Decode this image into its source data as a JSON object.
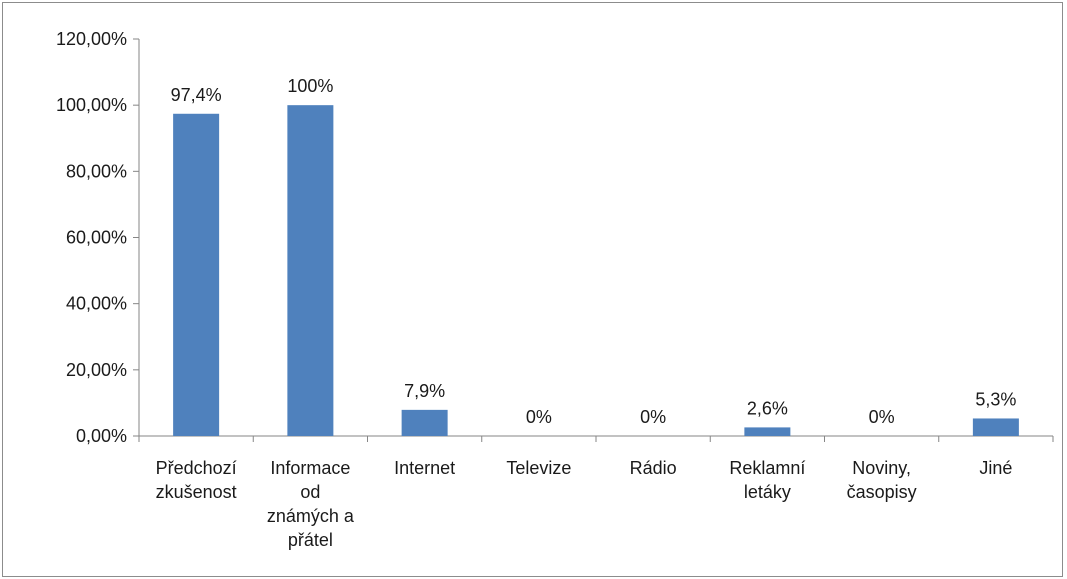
{
  "chart_data": {
    "type": "bar",
    "title": "",
    "xlabel": "",
    "ylabel": "",
    "ylim": [
      0,
      120
    ],
    "y_ticks": [
      "0,00%",
      "20,00%",
      "40,00%",
      "60,00%",
      "80,00%",
      "100,00%",
      "120,00%"
    ],
    "y_tick_values": [
      0,
      20,
      40,
      60,
      80,
      100,
      120
    ],
    "categories": [
      [
        "Předchozí",
        "zkušenost"
      ],
      [
        "Informace",
        "od",
        "známých a",
        "přátel"
      ],
      [
        "Internet"
      ],
      [
        "Televize"
      ],
      [
        "Rádio"
      ],
      [
        "Reklamní",
        "letáky"
      ],
      [
        "Noviny,",
        "časopisy"
      ],
      [
        "Jiné"
      ]
    ],
    "values": [
      97.4,
      100,
      7.9,
      0,
      0,
      2.6,
      0,
      5.3
    ],
    "data_labels": [
      "97,4%",
      "100%",
      "7,9%",
      "0%",
      "0%",
      "2,6%",
      "0%",
      "5,3%"
    ],
    "bar_color": "#4f81bd",
    "gridlines": false,
    "legend": "none"
  }
}
